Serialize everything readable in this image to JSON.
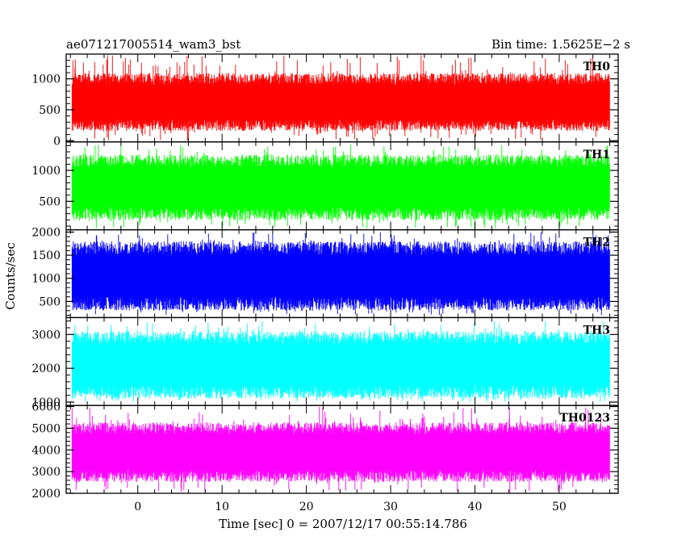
{
  "chart_data": {
    "type": "line",
    "title_left": "ae071217005514_wam3_bst",
    "title_right": "Bin time: 1.5625E−2 s",
    "xlabel": "Time [sec] 0 = 2007/12/17 00:55:14.786",
    "ylabel": "Counts/sec",
    "xlim": [
      -8.5,
      57
    ],
    "x_data_range": [
      -7.8,
      56.0
    ],
    "x_ticks": [
      0,
      10,
      20,
      30,
      40,
      50
    ],
    "x_minor_step": 2,
    "grid": false,
    "panels": [
      {
        "label": "TH0",
        "color": "#ff0000",
        "ylim": [
          -20,
          1400
        ],
        "y_ticks": [
          0,
          500,
          1000
        ],
        "y_minor_step": 100,
        "baseline": 600,
        "band": [
          250,
          1000
        ],
        "extremes": [
          0,
          1400
        ]
      },
      {
        "label": "TH1",
        "color": "#00ff00",
        "ylim": [
          40,
          1460
        ],
        "y_ticks": [
          500,
          1000
        ],
        "y_minor_step": 100,
        "baseline": 700,
        "band": [
          300,
          1150
        ],
        "extremes": [
          60,
          1420
        ]
      },
      {
        "label": "TH2",
        "color": "#0000ff",
        "ylim": [
          150,
          2050
        ],
        "y_ticks": [
          500,
          1000,
          1500,
          2000
        ],
        "y_minor_step": 100,
        "baseline": 1050,
        "band": [
          450,
          1650
        ],
        "extremes": [
          200,
          2000
        ]
      },
      {
        "label": "TH3",
        "color": "#00ffff",
        "ylim": [
          900,
          3500
        ],
        "y_ticks": [
          1000,
          2000,
          3000
        ],
        "y_minor_step": 200,
        "baseline": 2050,
        "band": [
          1300,
          2900
        ],
        "extremes": [
          1000,
          3400
        ]
      },
      {
        "label": "TH0123",
        "color": "#ff00ff",
        "ylim": [
          2000,
          6050
        ],
        "y_ticks": [
          2000,
          3000,
          4000,
          5000,
          6000
        ],
        "y_minor_step": 200,
        "baseline": 3900,
        "band": [
          2800,
          5000
        ],
        "extremes": [
          2000,
          6000
        ]
      }
    ]
  }
}
